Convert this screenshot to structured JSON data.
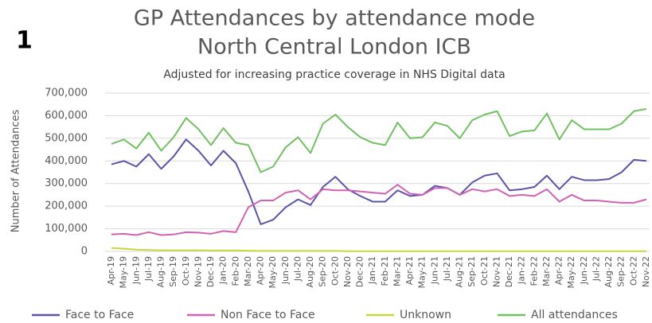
{
  "label": "1",
  "chart_data": {
    "type": "line",
    "title": [
      "GP Attendances by attendance mode",
      "North Central London ICB"
    ],
    "subtitle": "Adjusted for increasing practice coverage in NHS Digital data",
    "y_label": "Number of Attendances",
    "categories": [
      "Apr-19",
      "May-19",
      "Jun-19",
      "Jul-19",
      "Aug-19",
      "Sep-19",
      "Oct-19",
      "Nov-19",
      "Dec-19",
      "Jan-20",
      "Feb-20",
      "Mar-20",
      "Apr-20",
      "May-20",
      "Jun-20",
      "Jul-20",
      "Aug-20",
      "Sep-20",
      "Oct-20",
      "Nov-20",
      "Dec-20",
      "Jan-21",
      "Feb-21",
      "Mar-21",
      "Apr-21",
      "May-21",
      "Jun-21",
      "Jul-21",
      "Aug-21",
      "Sep-21",
      "Oct-21",
      "Nov-21",
      "Dec-21",
      "Jan-22",
      "Feb-22",
      "Mar-22",
      "Apr-22",
      "May-22",
      "Jun-22",
      "Jul-22",
      "Aug-22",
      "Sep-22",
      "Oct-22",
      "Nov-22"
    ],
    "series": [
      {
        "name": "Face to Face",
        "color": "#5b54a8",
        "values": [
          385000,
          400000,
          375000,
          430000,
          365000,
          420000,
          495000,
          445000,
          380000,
          445000,
          390000,
          265000,
          120000,
          140000,
          195000,
          230000,
          205000,
          285000,
          330000,
          275000,
          245000,
          220000,
          220000,
          270000,
          245000,
          250000,
          290000,
          280000,
          250000,
          305000,
          335000,
          345000,
          270000,
          275000,
          285000,
          335000,
          275000,
          330000,
          315000,
          315000,
          320000,
          350000,
          405000,
          400000
        ]
      },
      {
        "name": "Non Face to Face",
        "color": "#d262b4",
        "values": [
          75000,
          78000,
          72000,
          85000,
          72000,
          75000,
          85000,
          83000,
          78000,
          90000,
          85000,
          195000,
          225000,
          225000,
          260000,
          270000,
          230000,
          275000,
          270000,
          270000,
          265000,
          260000,
          255000,
          295000,
          255000,
          250000,
          280000,
          280000,
          250000,
          275000,
          265000,
          275000,
          245000,
          250000,
          245000,
          275000,
          220000,
          250000,
          225000,
          225000,
          220000,
          215000,
          215000,
          230000
        ]
      },
      {
        "name": "Unknown",
        "color": "#c9d83f",
        "values": [
          15000,
          12000,
          8000,
          6000,
          5000,
          5000,
          5000,
          5000,
          4000,
          4000,
          4000,
          3000,
          2000,
          2000,
          2000,
          2000,
          2000,
          2000,
          2000,
          1000,
          1000,
          1000,
          1000,
          1000,
          1000,
          1000,
          1000,
          1000,
          1000,
          1000,
          1000,
          1000,
          1000,
          1000,
          1000,
          1000,
          1000,
          1000,
          1000,
          1000,
          1000,
          1000,
          1000,
          1000
        ]
      },
      {
        "name": "All attendances",
        "color": "#72c062",
        "values": [
          475000,
          495000,
          455000,
          525000,
          445000,
          505000,
          590000,
          540000,
          470000,
          545000,
          480000,
          470000,
          350000,
          375000,
          460000,
          505000,
          435000,
          565000,
          605000,
          550000,
          505000,
          480000,
          470000,
          570000,
          500000,
          505000,
          570000,
          555000,
          500000,
          580000,
          605000,
          620000,
          510000,
          530000,
          535000,
          610000,
          495000,
          580000,
          540000,
          540000,
          540000,
          565000,
          620000,
          630000
        ]
      }
    ],
    "ylim": [
      0,
      700000
    ],
    "yticks": [
      0,
      {
        "value": 100000,
        "label": "100,000"
      },
      {
        "value": 200000,
        "label": "200,000"
      },
      {
        "value": 300000,
        "label": "300,000"
      },
      {
        "value": 400000,
        "label": "400,000"
      },
      {
        "value": 500000,
        "label": "500,000"
      },
      {
        "value": 600000,
        "label": "600,000"
      },
      {
        "value": 700000,
        "label": "700,000"
      }
    ],
    "grid": true,
    "legend": "bottom"
  }
}
